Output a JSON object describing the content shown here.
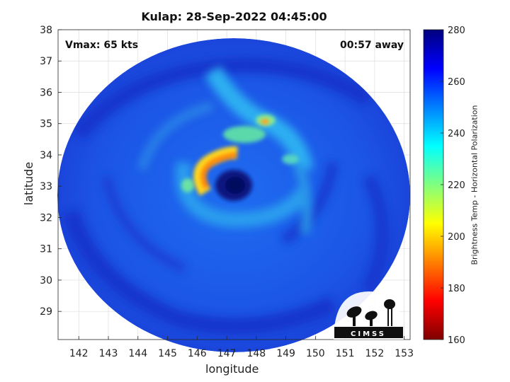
{
  "title": "Kulap: 28-Sep-2022 04:45:00",
  "vmax_label": "Vmax: 65 kts",
  "time_label": "00:57 away",
  "storm_center": {
    "lon": 147.3,
    "lat": 33.0
  },
  "axes": {
    "xlabel": "longitude",
    "ylabel": "latitude",
    "xlim": [
      141.3,
      153.2
    ],
    "ylim": [
      28.1,
      38.0
    ],
    "xticks": [
      142,
      143,
      144,
      145,
      146,
      147,
      148,
      149,
      150,
      151,
      152,
      153
    ],
    "yticks": [
      29,
      30,
      31,
      32,
      33,
      34,
      35,
      36,
      37,
      38
    ],
    "grid": true
  },
  "colorbar": {
    "label": "Brightness Temp - Horizontal Polarization",
    "min": 160,
    "max": 280,
    "ticks": [
      160,
      180,
      200,
      220,
      240,
      260,
      280
    ],
    "colors": [
      "#7f0000",
      "#ff0000",
      "#ff8000",
      "#ffff00",
      "#80ff80",
      "#00ffff",
      "#0080ff",
      "#0000ff",
      "#00007f"
    ]
  },
  "logo": {
    "text": "CIMSS"
  }
}
